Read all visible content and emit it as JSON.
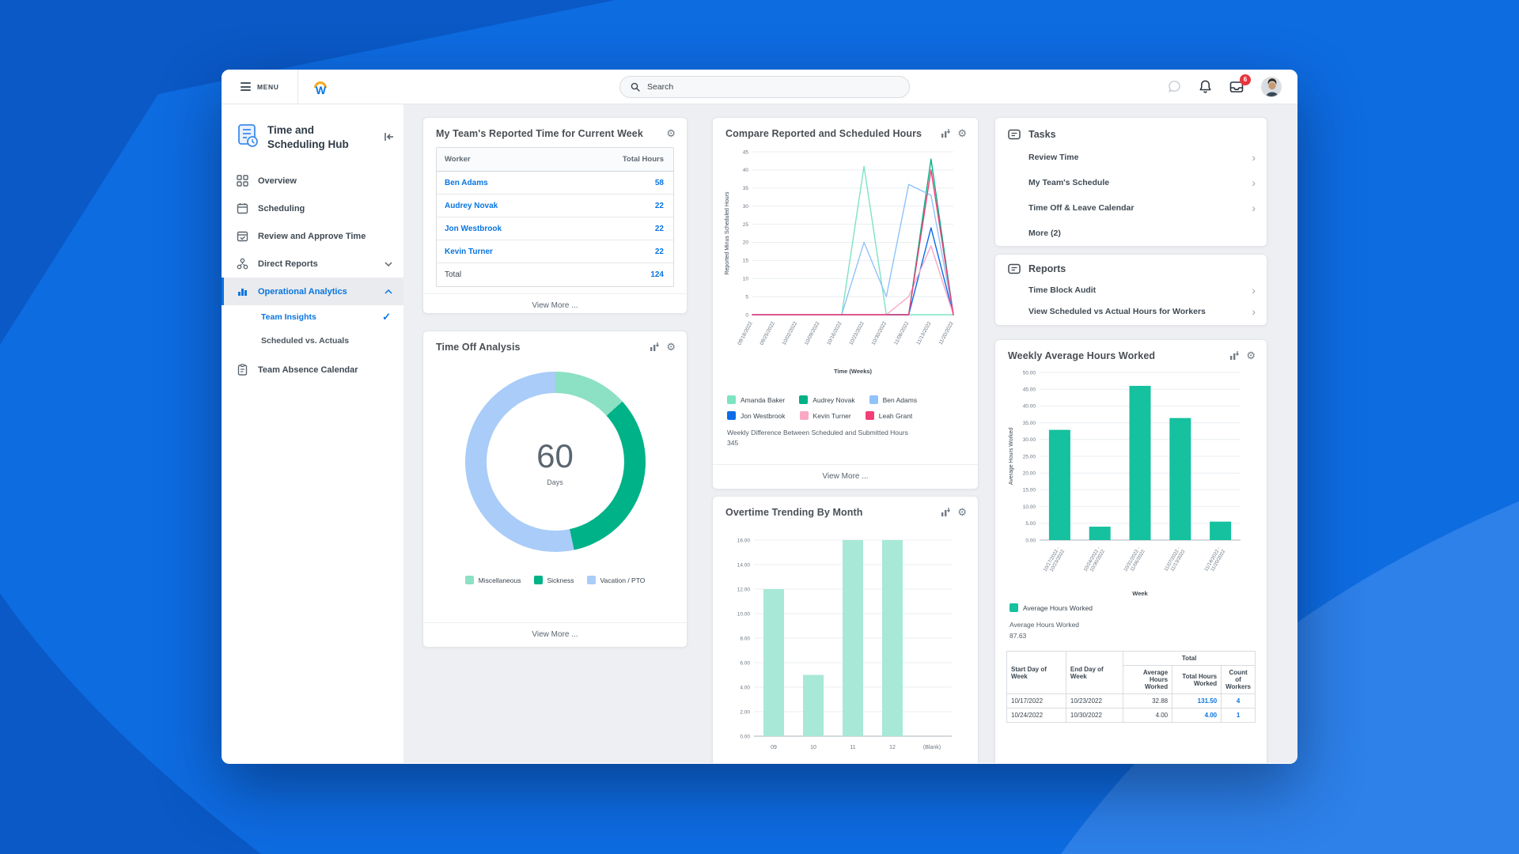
{
  "background": {
    "base": "#0e6ce1",
    "dark_shape": "#0a59c6",
    "light_shape": "#2d81e9"
  },
  "topbar": {
    "menu_label": "MENU",
    "search_placeholder": "Search",
    "inbox_badge": "6"
  },
  "sidebar": {
    "title": "Time and Scheduling Hub",
    "items": [
      {
        "label": "Overview"
      },
      {
        "label": "Scheduling"
      },
      {
        "label": "Review and Approve Time"
      },
      {
        "label": "Direct Reports"
      },
      {
        "label": "Operational Analytics"
      },
      {
        "label": "Team Insights"
      },
      {
        "label": "Scheduled vs. Actuals"
      },
      {
        "label": "Team Absence Calendar"
      }
    ]
  },
  "reported_time": {
    "title": "My Team's Reported Time for Current Week",
    "columns": [
      "Worker",
      "Total Hours"
    ],
    "rows": [
      {
        "worker": "Ben Adams",
        "hours": "58"
      },
      {
        "worker": "Audrey Novak",
        "hours": "22"
      },
      {
        "worker": "Jon Westbrook",
        "hours": "22"
      },
      {
        "worker": "Kevin Turner",
        "hours": "22"
      }
    ],
    "total_label": "Total",
    "total_hours": "124",
    "view_more": "View More ..."
  },
  "time_off": {
    "title": "Time Off Analysis",
    "view_more": "View More ...",
    "chart": {
      "type": "donut",
      "center_value": "60",
      "center_label": "Days",
      "segments": [
        {
          "label": "Miscellaneous",
          "value": 8,
          "color": "#8ce0c4"
        },
        {
          "label": "Sickness",
          "value": 20,
          "color": "#00b287"
        },
        {
          "label": "Vacation / PTO",
          "value": 32,
          "color": "#a9ccf8"
        }
      ]
    }
  },
  "compare": {
    "title": "Compare Reported and Scheduled Hours",
    "caption_line1": "Weekly Difference Between Scheduled and Submitted Hours",
    "caption_line2": "345",
    "view_more": "View More ...",
    "chart": {
      "type": "line",
      "ylabel": "Reported Minus Scheduled Hours",
      "xlabel": "Time (Weeks)",
      "ymax": 45,
      "ystep": 5,
      "x_labels": [
        "09/18/2022",
        "09/25/2022",
        "10/02/2022",
        "10/09/2022",
        "10/16/2022",
        "10/23/2022",
        "10/30/2022",
        "11/06/2022",
        "11/13/2022",
        "11/20/2022"
      ],
      "series": [
        {
          "name": "Amanda Baker",
          "color": "#7de3c3",
          "values": [
            0,
            0,
            0,
            0,
            0,
            41,
            0,
            0,
            0,
            0
          ]
        },
        {
          "name": "Audrey Novak",
          "color": "#00b287",
          "values": [
            0,
            0,
            0,
            0,
            0,
            0,
            0,
            0,
            43,
            0
          ]
        },
        {
          "name": "Ben Adams",
          "color": "#8fc3f9",
          "values": [
            0,
            0,
            0,
            0,
            0,
            20,
            5,
            36,
            33,
            0
          ]
        },
        {
          "name": "Jon Westbrook",
          "color": "#0b6ce8",
          "values": [
            0,
            0,
            0,
            0,
            0,
            0,
            0,
            0,
            24,
            0
          ]
        },
        {
          "name": "Kevin Turner",
          "color": "#f9a8c6",
          "values": [
            0,
            0,
            0,
            0,
            0,
            0,
            0,
            5,
            19,
            0
          ]
        },
        {
          "name": "Leah Grant",
          "color": "#f23e76",
          "values": [
            0,
            0,
            0,
            0,
            0,
            0,
            0,
            0,
            40,
            0
          ]
        }
      ]
    }
  },
  "overtime": {
    "title": "Overtime Trending By Month",
    "chart": {
      "type": "bar",
      "categories": [
        "09",
        "10",
        "11",
        "12",
        "(Blank)"
      ],
      "values": [
        12,
        5,
        16,
        16,
        0
      ],
      "ymax": 16,
      "ystep": 2,
      "color": "#a8e8d6"
    }
  },
  "tasks": {
    "title": "Tasks",
    "items": [
      "Review Time",
      "My Team's Schedule",
      "Time Off & Leave Calendar"
    ],
    "more": "More (2)"
  },
  "reports": {
    "title": "Reports",
    "items": [
      "Time Block Audit",
      "View Scheduled vs Actual Hours for Workers"
    ]
  },
  "weekly": {
    "title": "Weekly Average Hours Worked",
    "caption_label": "Average Hours Worked",
    "caption_value": "87.63",
    "chart": {
      "type": "bar",
      "categories": [
        "10/17/2022 - 10/23/2022",
        "10/24/2022 - 10/30/2022",
        "10/31/2022 - 11/06/2022",
        "11/07/2022 - 11/13/2022",
        "11/14/2022 - 11/20/2022"
      ],
      "values": [
        32.88,
        4.0,
        46.0,
        36.4,
        5.5
      ],
      "ymax": 50,
      "ystep": 5,
      "color": "#15c19e",
      "ylabel": "Average Hours Worked",
      "xlabel": "Week",
      "legend": [
        {
          "label": "Average Hours Worked",
          "color": "#15c19e"
        }
      ]
    },
    "table": {
      "total_header": "Total",
      "columns": [
        "Start Day of Week",
        "End Day of Week",
        "Average Hours Worked",
        "Total Hours Worked",
        "Count of Workers"
      ],
      "rows": [
        [
          "10/17/2022",
          "10/23/2022",
          "32.88",
          "131.50",
          "4"
        ],
        [
          "10/24/2022",
          "10/30/2022",
          "4.00",
          "4.00",
          "1"
        ]
      ]
    }
  }
}
